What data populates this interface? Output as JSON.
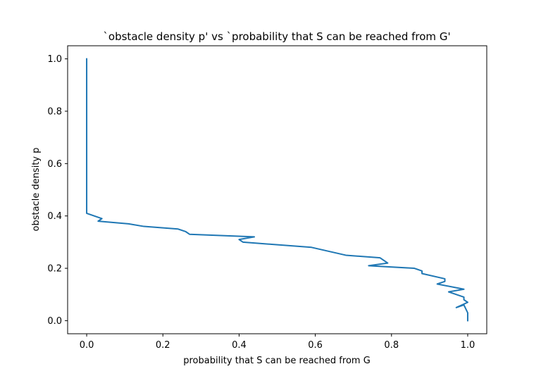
{
  "chart_data": {
    "type": "line",
    "title": "`obstacle density p' vs `probability that S can be reached from G'",
    "xlabel": "probability that S can be reached from G",
    "ylabel": "obstacle density p",
    "xlim": [
      -0.05,
      1.05
    ],
    "ylim": [
      -0.05,
      1.05
    ],
    "xticks": [
      0.0,
      0.2,
      0.4,
      0.6,
      0.8,
      1.0
    ],
    "xtick_labels": [
      "0.0",
      "0.2",
      "0.4",
      "0.6",
      "0.8",
      "1.0"
    ],
    "yticks": [
      0.0,
      0.2,
      0.4,
      0.6,
      0.8,
      1.0
    ],
    "ytick_labels": [
      "0.0",
      "0.2",
      "0.4",
      "0.6",
      "0.8",
      "1.0"
    ],
    "grid": false,
    "color": "#1f77b4",
    "series": [
      {
        "x": [
          1.0,
          1.0,
          0.99,
          0.97,
          1.0,
          0.99,
          0.99,
          0.95,
          0.99,
          0.92,
          0.94,
          0.94,
          0.88,
          0.88,
          0.86,
          0.74,
          0.79,
          0.77,
          0.68,
          0.59,
          0.41,
          0.4,
          0.44,
          0.27,
          0.26,
          0.24,
          0.15,
          0.11,
          0.03,
          0.04,
          0.0,
          0.0,
          0.0
        ],
        "y": [
          0.0,
          0.03,
          0.06,
          0.05,
          0.07,
          0.08,
          0.09,
          0.11,
          0.12,
          0.14,
          0.15,
          0.16,
          0.18,
          0.19,
          0.2,
          0.21,
          0.22,
          0.24,
          0.25,
          0.28,
          0.3,
          0.31,
          0.32,
          0.33,
          0.34,
          0.35,
          0.36,
          0.37,
          0.38,
          0.39,
          0.41,
          0.42,
          1.0
        ]
      }
    ]
  }
}
